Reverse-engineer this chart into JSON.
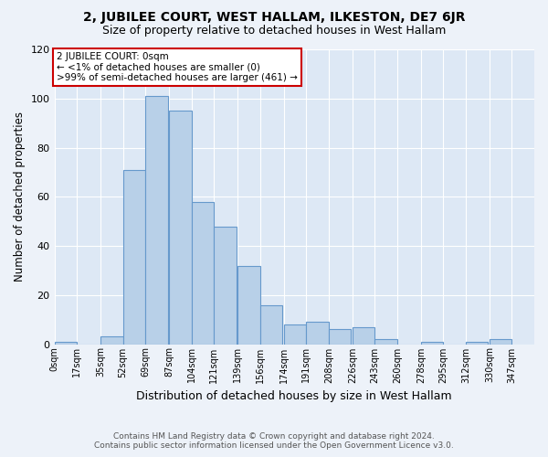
{
  "title": "2, JUBILEE COURT, WEST HALLAM, ILKESTON, DE7 6JR",
  "subtitle": "Size of property relative to detached houses in West Hallam",
  "xlabel": "Distribution of detached houses by size in West Hallam",
  "ylabel": "Number of detached properties",
  "bin_labels": [
    "0sqm",
    "17sqm",
    "35sqm",
    "52sqm",
    "69sqm",
    "87sqm",
    "104sqm",
    "121sqm",
    "139sqm",
    "156sqm",
    "174sqm",
    "191sqm",
    "208sqm",
    "226sqm",
    "243sqm",
    "260sqm",
    "278sqm",
    "295sqm",
    "312sqm",
    "330sqm",
    "347sqm"
  ],
  "bin_edges": [
    0,
    17,
    35,
    52,
    69,
    87,
    104,
    121,
    139,
    156,
    174,
    191,
    208,
    226,
    243,
    260,
    278,
    295,
    312,
    330,
    347
  ],
  "bar_heights": [
    1,
    0,
    3,
    71,
    101,
    95,
    58,
    48,
    32,
    16,
    8,
    9,
    6,
    7,
    2,
    0,
    1,
    0,
    1,
    2
  ],
  "bar_color": "#b8d0e8",
  "bar_edge_color": "#6699cc",
  "ylim": [
    0,
    120
  ],
  "yticks": [
    0,
    20,
    40,
    60,
    80,
    100,
    120
  ],
  "annotation_box_title": "2 JUBILEE COURT: 0sqm",
  "annotation_line1": "← <1% of detached houses are smaller (0)",
  "annotation_line2": ">99% of semi-detached houses are larger (461) →",
  "annotation_box_color": "#ffffff",
  "annotation_box_edge_color": "#cc0000",
  "footer1": "Contains HM Land Registry data © Crown copyright and database right 2024.",
  "footer2": "Contains public sector information licensed under the Open Government Licence v3.0.",
  "bg_color": "#edf2f9",
  "plot_bg_color": "#dde8f5"
}
